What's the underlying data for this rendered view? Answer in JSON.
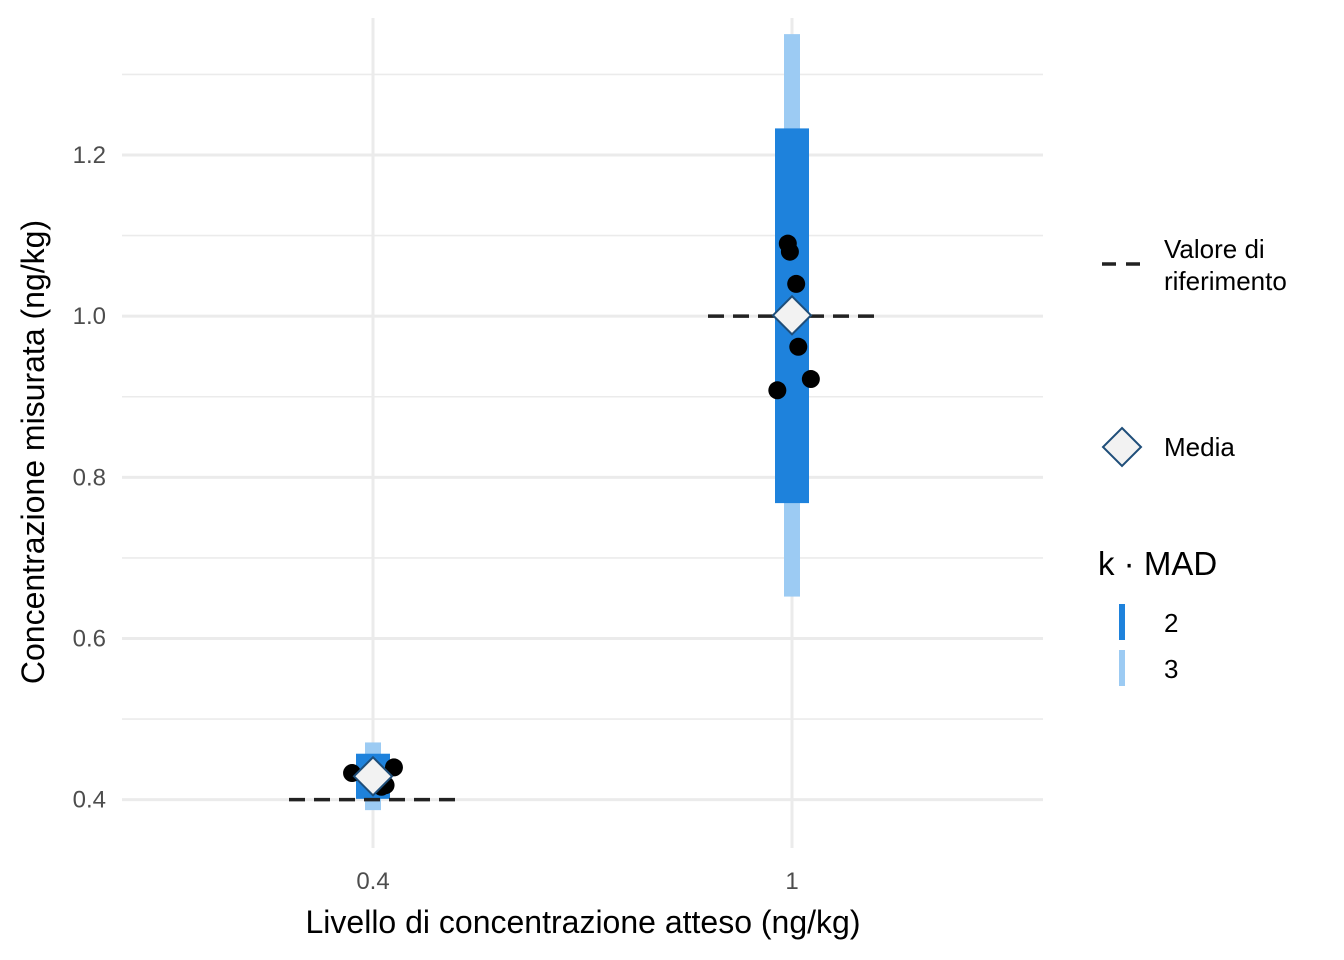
{
  "chart_data": {
    "type": "scatter",
    "xlabel": "Livello di concentrazione atteso (ng/kg)",
    "ylabel": "Concentrazione misurata (ng/kg)",
    "x_categories": [
      "0.4",
      "1"
    ],
    "ylim": [
      0.34,
      1.37
    ],
    "y_ticks": [
      0.4,
      0.6,
      0.8,
      1.0,
      1.2
    ],
    "y_tick_labels": [
      "0.4",
      "0.6",
      "0.8",
      "1.0",
      "1.2"
    ],
    "grid": true,
    "legend_position": "right",
    "groups": [
      {
        "category": "0.4",
        "reference": 0.4,
        "mean": 0.429,
        "band_k2": [
          0.401,
          0.457
        ],
        "band_k3": [
          0.387,
          0.471
        ],
        "points": [
          {
            "offset": -0.05,
            "value": 0.433
          },
          {
            "offset": 0.02,
            "value": 0.416
          },
          {
            "offset": 0.03,
            "value": 0.418
          },
          {
            "offset": 0.05,
            "value": 0.44
          }
        ]
      },
      {
        "category": "1",
        "reference": 1.0,
        "mean": 1.001,
        "band_k2": [
          0.768,
          1.233
        ],
        "band_k3": [
          0.652,
          1.35
        ],
        "points": [
          {
            "offset": -0.035,
            "value": 0.908
          },
          {
            "offset": -0.01,
            "value": 1.09
          },
          {
            "offset": -0.005,
            "value": 1.08
          },
          {
            "offset": 0.01,
            "value": 1.04
          },
          {
            "offset": 0.015,
            "value": 0.962
          },
          {
            "offset": 0.045,
            "value": 0.922
          }
        ]
      }
    ],
    "legend": {
      "reference_label_line1": "Valore di",
      "reference_label_line2": "riferimento",
      "mean_label": "Media",
      "k_title": "k · MAD",
      "k_entries": [
        "2",
        "3"
      ]
    },
    "colors": {
      "band_k2": "#1e82dc",
      "band_k3": "#9ccbf3",
      "points": "#000000",
      "mean_fill": "#f2f2f2",
      "mean_stroke": "#1f4e79",
      "reference_line": "#222222",
      "grid": "#ebebeb"
    }
  }
}
